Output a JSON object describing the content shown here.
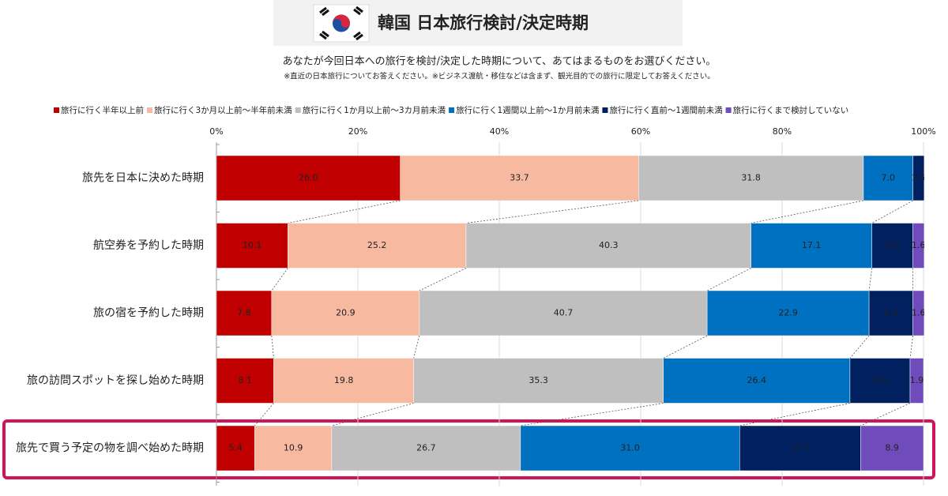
{
  "chart_data": {
    "type": "stacked_bar_horizontal_100",
    "title": "韓国 日本旅行検討/決定時期",
    "subtitle": "あなたが今回日本への旅行を検討/決定した時期について、あてはまるものをお選びください。",
    "note": "※直近の日本旅行についてお答えください。※ビジネス渡航・移住などは含まず、観光目的での旅行に限定してお答えください。",
    "categories": [
      "旅先を日本に決めた時期",
      "航空券を予約した時期",
      "旅の宿を予約した時期",
      "旅の訪問スポットを探し始めた時期",
      "旅先で買う予定の物を調べ始めた時期"
    ],
    "series": [
      {
        "name": "旅行に行く半年以上前",
        "color": "#c00000",
        "values": [
          26.0,
          10.1,
          7.8,
          8.1,
          5.4
        ],
        "value_labels": [
          "26.0",
          "10.1",
          "7.8",
          "8.1",
          "5.4"
        ]
      },
      {
        "name": "旅行に行く3か月以上前～半年前未満",
        "color": "#f8b9a1",
        "values": [
          33.7,
          25.2,
          20.9,
          19.8,
          10.9
        ],
        "value_labels": [
          "33.7",
          "25.2",
          "20.9",
          "19.8",
          "10.9"
        ]
      },
      {
        "name": "旅行に行く1か月以上前～3カ月前未満",
        "color": "#bfbfbf",
        "values": [
          31.8,
          40.3,
          40.7,
          35.3,
          26.7
        ],
        "value_labels": [
          "31.8",
          "40.3",
          "40.7",
          "35.3",
          "26.7"
        ]
      },
      {
        "name": "旅行に行く1週間以上前～1か月前未満",
        "color": "#0070c0",
        "values": [
          7.0,
          17.1,
          22.9,
          26.4,
          31.0
        ],
        "value_labels": [
          "7.0",
          "17.1",
          "22.9",
          "26.4",
          "31.0"
        ]
      },
      {
        "name": "旅行に行く直前～1週間前未満",
        "color": "#002060",
        "values": [
          1.6,
          5.8,
          6.2,
          8.5,
          17.1
        ],
        "value_labels": [
          "1.6",
          "5.8",
          "6.2",
          "8.5",
          "17.1"
        ]
      },
      {
        "name": "旅行に行くまで検討していない",
        "color": "#6f4bbb",
        "values": [
          null,
          1.6,
          1.6,
          1.9,
          8.9
        ],
        "value_labels": [
          null,
          "1.6",
          "1.6",
          "1.9",
          "8.9"
        ]
      }
    ],
    "xlim": [
      0,
      100
    ],
    "xticks": [
      {
        "value": 0,
        "label": "0%"
      },
      {
        "value": 20,
        "label": "20%"
      },
      {
        "value": 40,
        "label": "40%"
      },
      {
        "value": 60,
        "label": "60%"
      },
      {
        "value": 80,
        "label": "80%"
      },
      {
        "value": 100,
        "label": "100%"
      }
    ],
    "grid": true,
    "legend": "top"
  }
}
